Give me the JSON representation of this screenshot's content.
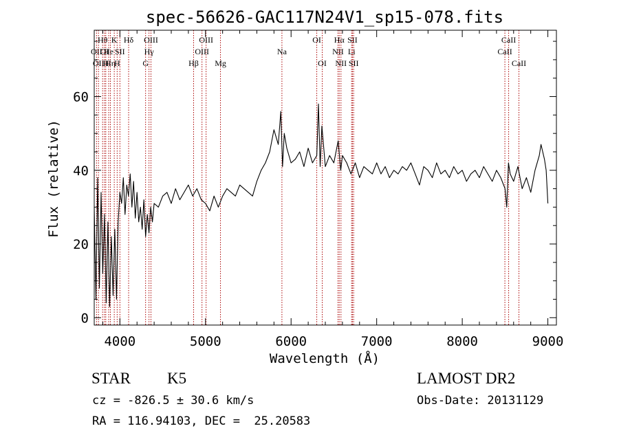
{
  "chart_data": {
    "type": "line",
    "title": "spec-56626-GAC117N24V1_sp15-078.fits",
    "xlabel": "Wavelength (Å)",
    "ylabel": "Flux (relative)",
    "xlim": [
      3700,
      9100
    ],
    "ylim": [
      -2,
      78
    ],
    "xticks": [
      4000,
      5000,
      6000,
      7000,
      8000,
      9000
    ],
    "xtick_labels": [
      "4000",
      "5000",
      "6000",
      "7000",
      "8000",
      "9000"
    ],
    "yticks": [
      0,
      20,
      40,
      60
    ],
    "ytick_labels": [
      "0",
      "20",
      "40",
      "60"
    ],
    "grid": false,
    "legend": "none",
    "series": [
      {
        "x": [
          3700,
          3720,
          3740,
          3760,
          3780,
          3800,
          3820,
          3840,
          3860,
          3880,
          3900,
          3920,
          3940,
          3960,
          3980,
          4000,
          4020,
          4040,
          4060,
          4080,
          4100,
          4120,
          4140,
          4160,
          4180,
          4200,
          4220,
          4240,
          4260,
          4280,
          4300,
          4320,
          4340,
          4360,
          4380,
          4400,
          4450,
          4500,
          4550,
          4600,
          4650,
          4700,
          4750,
          4800,
          4850,
          4900,
          4950,
          5000,
          5050,
          5100,
          5150,
          5200,
          5250,
          5300,
          5350,
          5400,
          5450,
          5500,
          5550,
          5600,
          5650,
          5700,
          5750,
          5800,
          5850,
          5880,
          5900,
          5920,
          5950,
          6000,
          6050,
          6100,
          6150,
          6200,
          6250,
          6300,
          6320,
          6340,
          6360,
          6400,
          6450,
          6500,
          6550,
          6580,
          6600,
          6650,
          6700,
          6750,
          6800,
          6850,
          6900,
          6950,
          7000,
          7050,
          7100,
          7150,
          7200,
          7250,
          7300,
          7350,
          7400,
          7450,
          7500,
          7550,
          7600,
          7650,
          7700,
          7750,
          7800,
          7850,
          7900,
          7950,
          8000,
          8050,
          8100,
          8150,
          8200,
          8250,
          8300,
          8350,
          8400,
          8450,
          8500,
          8520,
          8540,
          8560,
          8600,
          8650,
          8700,
          8750,
          8800,
          8850,
          8900,
          8920,
          8940,
          8960,
          8980,
          9000
        ],
        "y": [
          30,
          5,
          38,
          8,
          34,
          12,
          28,
          4,
          26,
          3,
          22,
          6,
          24,
          5,
          26,
          34,
          31,
          38,
          28,
          36,
          33,
          39,
          30,
          37,
          27,
          34,
          26,
          30,
          24,
          32,
          22,
          28,
          23,
          30,
          26,
          31,
          30,
          33,
          34,
          31,
          35,
          32,
          34,
          36,
          33,
          35,
          32,
          31,
          29,
          33,
          30,
          33,
          35,
          34,
          33,
          36,
          35,
          34,
          33,
          37,
          40,
          42,
          45,
          51,
          47,
          56,
          41,
          50,
          46,
          42,
          43,
          45,
          41,
          46,
          42,
          44,
          58,
          41,
          52,
          41,
          44,
          42,
          48,
          40,
          44,
          42,
          39,
          42,
          38,
          41,
          40,
          39,
          42,
          39,
          41,
          38,
          40,
          39,
          41,
          40,
          42,
          39,
          36,
          41,
          40,
          38,
          42,
          39,
          40,
          38,
          41,
          39,
          40,
          37,
          39,
          40,
          38,
          41,
          39,
          37,
          40,
          38,
          35,
          30,
          42,
          39,
          37,
          41,
          35,
          38,
          34,
          40,
          44,
          47,
          45,
          43,
          40,
          31
        ]
      }
    ],
    "lines": [
      {
        "wavelength": 3727,
        "row": 2,
        "label": "OII"
      },
      {
        "wavelength": 3750,
        "row": 3,
        "label": "OII"
      },
      {
        "wavelength": 3798,
        "row": 1,
        "label": "Hθ"
      },
      {
        "wavelength": 3820,
        "row": 2,
        "label": "OI"
      },
      {
        "wavelength": 3835,
        "row": 3,
        "label": "H"
      },
      {
        "wavelength": 3869,
        "row": 2,
        "label": "He"
      },
      {
        "wavelength": 3889,
        "row": 3,
        "label": "Hη"
      },
      {
        "wavelength": 3934,
        "row": 1,
        "label": "K"
      },
      {
        "wavelength": 3968,
        "row": 3,
        "label": "H"
      },
      {
        "wavelength": 4000,
        "row": 2,
        "label": "SII"
      },
      {
        "wavelength": 4102,
        "row": 1,
        "label": "Hδ"
      },
      {
        "wavelength": 4300,
        "row": 3,
        "label": "G"
      },
      {
        "wavelength": 4340,
        "row": 2,
        "label": "Hγ"
      },
      {
        "wavelength": 4363,
        "row": 1,
        "label": "OIII"
      },
      {
        "wavelength": 4861,
        "row": 3,
        "label": "Hβ"
      },
      {
        "wavelength": 4959,
        "row": 2,
        "label": "OIII"
      },
      {
        "wavelength": 5007,
        "row": 1,
        "label": "OIII"
      },
      {
        "wavelength": 5175,
        "row": 3,
        "label": "Mg"
      },
      {
        "wavelength": 5893,
        "row": 2,
        "label": "Na"
      },
      {
        "wavelength": 6300,
        "row": 1,
        "label": "OI"
      },
      {
        "wavelength": 6364,
        "row": 3,
        "label": "OI"
      },
      {
        "wavelength": 6548,
        "row": 2,
        "label": "NII"
      },
      {
        "wavelength": 6563,
        "row": 1,
        "label": "Hα"
      },
      {
        "wavelength": 6583,
        "row": 3,
        "label": "NII"
      },
      {
        "wavelength": 6707,
        "row": 2,
        "label": "Li"
      },
      {
        "wavelength": 6717,
        "row": 1,
        "label": "SII"
      },
      {
        "wavelength": 6731,
        "row": 3,
        "label": "SII"
      },
      {
        "wavelength": 8498,
        "row": 2,
        "label": "CaII"
      },
      {
        "wavelength": 8542,
        "row": 1,
        "label": "CaII"
      },
      {
        "wavelength": 8662,
        "row": 3,
        "label": "CaII"
      }
    ],
    "line_color": "#aa0000"
  },
  "info": {
    "class": "STAR",
    "subclass": "K5",
    "survey": "LAMOST DR2",
    "velocity": "cz = -826.5 ± 30.6 km/s",
    "obs_date": "Obs-Date: 20131129",
    "coords": "RA = 116.94103, DEC =  25.20583"
  }
}
